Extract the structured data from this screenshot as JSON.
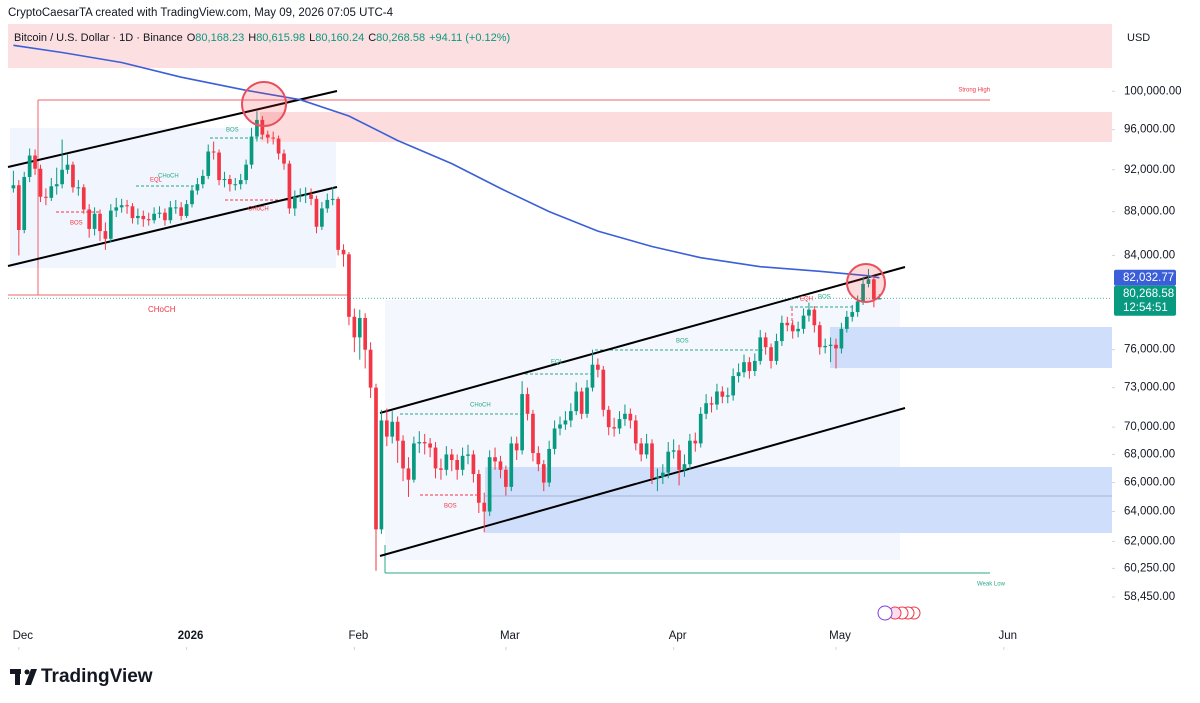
{
  "header": {
    "credit": "CryptoCaesarTA created with TradingView.com, May 09, 2026 07:05 UTC-4",
    "currency": "USD",
    "logo": "TradingView"
  },
  "chart_data": {
    "type": "candlestick",
    "title": "Bitcoin / U.S. Dollar · 1D · Binance",
    "legend": [
      {
        "key": "O",
        "value": "80,168.23"
      },
      {
        "key": "H",
        "value": "80,615.98"
      },
      {
        "key": "L",
        "value": "80,160.24"
      },
      {
        "key": "C",
        "value": "80,268.58"
      }
    ],
    "change": "+94.11 (+0.12%)",
    "log_scale": true,
    "grid": false,
    "up_color": "#089981",
    "down_color": "#f23645",
    "ylim": [
      55250,
      107400
    ],
    "yticks": [
      {
        "value": 100000,
        "label": "100,000.00"
      },
      {
        "value": 96000,
        "label": "96,000.00"
      },
      {
        "value": 92000,
        "label": "92,000.00"
      },
      {
        "value": 88000,
        "label": "88,000.00"
      },
      {
        "value": 84000,
        "label": "84,000.00"
      },
      {
        "value": 76000,
        "label": "76,000.00"
      },
      {
        "value": 73000,
        "label": "73,000.00"
      },
      {
        "value": 70000,
        "label": "70,000.00"
      },
      {
        "value": 68000,
        "label": "68,000.00"
      },
      {
        "value": 66000,
        "label": "66,000.00"
      },
      {
        "value": 64000,
        "label": "64,000.00"
      },
      {
        "value": 62000,
        "label": "62,000.00"
      },
      {
        "value": 60250,
        "label": "60,250.00"
      },
      {
        "value": 58450,
        "label": "58,450.00"
      }
    ],
    "xlim": [
      -1,
      203
    ],
    "xticks": [
      {
        "value": 1,
        "label": "Dec"
      },
      {
        "value": 32,
        "label": "2026"
      },
      {
        "value": 63,
        "label": "Feb"
      },
      {
        "value": 91,
        "label": "Mar"
      },
      {
        "value": 122,
        "label": "Apr"
      },
      {
        "value": 152,
        "label": "May"
      },
      {
        "value": 183,
        "label": "Jun"
      }
    ],
    "open": [
      90200,
      90500,
      86300,
      91300,
      93400,
      92100,
      89400,
      89300,
      90400,
      90600,
      92000,
      92500,
      90300,
      90300,
      88200,
      86400,
      87800,
      86200,
      85500,
      88100,
      88400,
      88600,
      88500,
      87400,
      87600,
      87300,
      87200,
      87800,
      87900,
      87200,
      88400,
      88400,
      87600,
      88700,
      90000,
      90600,
      91400,
      93800,
      93700,
      91000,
      91100,
      90600,
      90600,
      91000,
      92500,
      95300,
      97000,
      95500,
      95200,
      95100,
      93600,
      92600,
      88300,
      89400,
      89500,
      89600,
      89200,
      86600,
      88300,
      89100,
      89200,
      84500,
      84100,
      78700,
      77000,
      78600,
      76000,
      73000,
      62800,
      70500,
      69300,
      70400,
      69000,
      67000,
      66200,
      68800,
      68900,
      68800,
      68500,
      67000,
      66900,
      68000,
      67600,
      66900,
      67900,
      68000,
      66600,
      64600,
      64000,
      67800,
      67500,
      66900,
      65700,
      68800,
      68300,
      72500,
      71000,
      68100,
      67300,
      66000,
      68400,
      69900,
      70200,
      70500,
      71200,
      72700,
      71000,
      73000,
      74800,
      74400,
      71300,
      70000,
      69900,
      70600,
      71000,
      70500,
      68800,
      68000,
      68800,
      66300,
      66400,
      66700,
      68200,
      68300,
      66900,
      67300,
      69000,
      68800,
      71000,
      71800,
      71700,
      72700,
      72300,
      72400,
      73900,
      74200,
      75000,
      74300,
      75100,
      77000,
      76200,
      75100,
      76700,
      78200,
      78000,
      77500,
      77700,
      78800,
      79300,
      78000,
      76200,
      76300,
      76400,
      76100,
      77700,
      78700,
      79100,
      80000,
      81500,
      81900,
      80168.23
    ],
    "high": [
      91900,
      91000,
      91800,
      94100,
      94000,
      92500,
      90200,
      91200,
      92200,
      95000,
      93500,
      92800,
      91000,
      90600,
      88700,
      88400,
      88200,
      87000,
      88700,
      89300,
      89200,
      89100,
      88800,
      88300,
      88100,
      87900,
      88400,
      88500,
      88300,
      89000,
      89100,
      88900,
      89100,
      90500,
      91200,
      92000,
      94500,
      94800,
      94000,
      91800,
      91500,
      91200,
      91600,
      93000,
      96200,
      97900,
      97400,
      95900,
      95800,
      95400,
      94000,
      92900,
      90000,
      90200,
      90300,
      90200,
      89500,
      88900,
      89700,
      90300,
      89400,
      85000,
      84300,
      79400,
      79300,
      79000,
      76600,
      73300,
      71300,
      71400,
      71200,
      70800,
      69400,
      67800,
      69300,
      69700,
      69500,
      69200,
      68900,
      67700,
      68600,
      68400,
      68000,
      68500,
      68700,
      68300,
      66900,
      65300,
      68300,
      68500,
      67900,
      67200,
      69300,
      69300,
      73500,
      73000,
      71300,
      68600,
      67600,
      69000,
      70500,
      70800,
      71200,
      71800,
      73400,
      73000,
      73600,
      76000,
      75300,
      74700,
      71600,
      70700,
      71200,
      71700,
      71400,
      70900,
      69200,
      69500,
      69100,
      67000,
      67300,
      68900,
      69100,
      68700,
      68000,
      69500,
      69600,
      71500,
      72500,
      72300,
      73300,
      73100,
      73000,
      74500,
      74900,
      75600,
      75400,
      75700,
      77600,
      77400,
      76500,
      77300,
      78800,
      78700,
      78400,
      78300,
      79400,
      79900,
      79600,
      78300,
      76900,
      77000,
      76900,
      78200,
      79200,
      79700,
      80500,
      82100,
      82800,
      82200,
      80615.98
    ],
    "low": [
      89800,
      84000,
      86000,
      90800,
      91500,
      88900,
      88600,
      89000,
      89600,
      90200,
      91600,
      89800,
      89500,
      87800,
      85600,
      85800,
      85300,
      84500,
      85200,
      87500,
      87900,
      87800,
      86900,
      86800,
      86600,
      86700,
      86900,
      87400,
      86700,
      86900,
      87800,
      87200,
      87400,
      88400,
      89600,
      90200,
      91100,
      93000,
      90500,
      90300,
      89900,
      90000,
      90100,
      90600,
      92100,
      94800,
      95000,
      94600,
      94500,
      93000,
      92000,
      87800,
      87600,
      88900,
      88800,
      88600,
      86000,
      86300,
      87900,
      88600,
      84000,
      83000,
      78000,
      75800,
      75200,
      74500,
      72200,
      60100,
      62500,
      68600,
      68800,
      67400,
      66100,
      65000,
      66000,
      68100,
      68000,
      67800,
      66300,
      66200,
      66500,
      66800,
      66200,
      66500,
      67300,
      66000,
      63900,
      62600,
      63700,
      66900,
      66300,
      65100,
      65400,
      67600,
      68000,
      70500,
      67500,
      66800,
      65400,
      65700,
      68000,
      69400,
      69800,
      70000,
      70900,
      70600,
      70700,
      72700,
      73800,
      70800,
      69400,
      69300,
      69500,
      70100,
      69900,
      68300,
      67500,
      67700,
      65900,
      65400,
      65900,
      66300,
      67700,
      65800,
      66400,
      66900,
      68200,
      68500,
      70600,
      71100,
      71300,
      71800,
      71800,
      72000,
      73400,
      73800,
      73700,
      73900,
      74800,
      75600,
      74500,
      74800,
      76300,
      77500,
      76900,
      77000,
      77300,
      78300,
      77400,
      75600,
      75700,
      75000,
      74500,
      75700,
      77400,
      78300,
      78700,
      79700,
      81200,
      79500,
      80160.24
    ],
    "close": [
      90500,
      86300,
      91300,
      93400,
      92100,
      89400,
      89300,
      90400,
      90600,
      92000,
      92500,
      90300,
      90300,
      88200,
      86400,
      87800,
      86200,
      85500,
      88100,
      88400,
      88600,
      88500,
      87400,
      87600,
      87300,
      87200,
      87800,
      87900,
      87200,
      88400,
      88400,
      87600,
      88700,
      90000,
      90600,
      91400,
      93800,
      93700,
      91000,
      91100,
      90600,
      90600,
      91000,
      92500,
      95300,
      97000,
      95500,
      95200,
      95100,
      93600,
      92600,
      88300,
      89400,
      89500,
      89600,
      89200,
      86600,
      88300,
      89100,
      89200,
      84500,
      84100,
      78700,
      77000,
      78600,
      76000,
      73000,
      62800,
      70500,
      69300,
      70400,
      69000,
      67000,
      66200,
      68800,
      68900,
      68800,
      68500,
      67000,
      66900,
      68000,
      67600,
      66900,
      67900,
      68000,
      66600,
      64600,
      64000,
      67800,
      67500,
      66900,
      65700,
      68800,
      68300,
      72500,
      71000,
      68100,
      67300,
      66000,
      68400,
      69900,
      70200,
      70500,
      71200,
      72700,
      71000,
      73000,
      74800,
      74400,
      71300,
      70000,
      69900,
      70600,
      71000,
      70500,
      68800,
      68000,
      68800,
      66300,
      66400,
      66700,
      68200,
      68300,
      66900,
      67300,
      69000,
      68800,
      71000,
      71800,
      71700,
      72700,
      72300,
      72400,
      73900,
      74200,
      75000,
      74300,
      75100,
      77000,
      76200,
      75100,
      76700,
      78200,
      78000,
      77500,
      77700,
      78800,
      79300,
      78000,
      76200,
      76300,
      76400,
      76100,
      77700,
      78700,
      79100,
      80000,
      81500,
      81900,
      80174.47,
      80268.58
    ],
    "moving_average": {
      "color": "#3a5fd8",
      "x": [
        0,
        9,
        20,
        31,
        43,
        53,
        62,
        71,
        81,
        90,
        99,
        108,
        118,
        127,
        138,
        149,
        158,
        160
      ],
      "values": [
        105000,
        104200,
        103100,
        101500,
        100100,
        99100,
        97400,
        94900,
        92600,
        90200,
        88000,
        86200,
        84800,
        83800,
        83000,
        82600,
        82200,
        82032.77
      ]
    },
    "ma_label": "82,032.77",
    "last_price_label": "80,268.58",
    "countdown": "12:54:51",
    "annotations": [
      "Strong High",
      "Weak Low",
      "CHoCH",
      "BOS",
      "CHoCH",
      "EQL",
      "BOS",
      "CHoCH",
      "CHoCH",
      "BOS",
      "BOS",
      "BOS",
      "EQH",
      "EQL"
    ]
  }
}
